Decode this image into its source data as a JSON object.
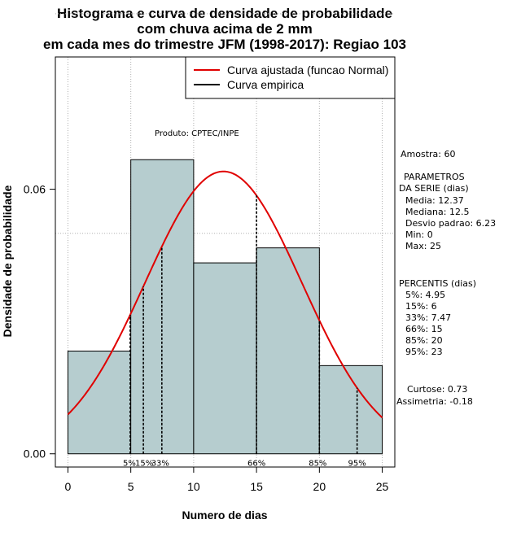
{
  "chart_data": {
    "type": "histogram",
    "title_lines": [
      "Histograma e curva de densidade de probabilidade",
      "com chuva acima de 2 mm",
      "em cada mes do trimestre JFM (1998-2017): Regiao 103"
    ],
    "xlabel": "Numero de dias",
    "ylabel": "Densidade de probabilidade",
    "xlim": [
      -1,
      26
    ],
    "ylim": [
      -0.003,
      0.09
    ],
    "x_ticks": [
      0,
      5,
      10,
      15,
      20,
      25
    ],
    "y_ticks": [
      0.0,
      0.06
    ],
    "y_tick_labels": [
      "0.00",
      "0.06"
    ],
    "grid_x": [
      0,
      5,
      10,
      15,
      20,
      25
    ],
    "grid_y": [
      0.05,
      0.0998
    ],
    "bins": [
      {
        "start": 0,
        "end": 5,
        "density": 0.0233
      },
      {
        "start": 5,
        "end": 10,
        "density": 0.0667
      },
      {
        "start": 10,
        "end": 15,
        "density": 0.0433
      },
      {
        "start": 15,
        "end": 20,
        "density": 0.0467
      },
      {
        "start": 20,
        "end": 25,
        "density": 0.02
      }
    ],
    "bar_color": "#b6cdcf",
    "curve_color": "#e00000",
    "normal_fit": {
      "mean": 12.37,
      "sd": 6.23
    },
    "percentiles": [
      {
        "label": "5%",
        "x": 4.95
      },
      {
        "label": "15%",
        "x": 6
      },
      {
        "label": "33%",
        "x": 7.47
      },
      {
        "label": "66%",
        "x": 15
      },
      {
        "label": "85%",
        "x": 20
      },
      {
        "label": "95%",
        "x": 23
      }
    ],
    "legend": {
      "position": "top-right",
      "entries": [
        {
          "label": "Curva ajustada (funcao Normal)",
          "color": "#e00000"
        },
        {
          "label": "Curva empirica",
          "color": "#000000"
        }
      ]
    },
    "product_note": "Produto: CPTEC/INPE",
    "stats": {
      "amostra": "Amostra: 60",
      "param_title": "PARAMETROS",
      "param_sub": "DA SERIE (dias)",
      "media": "Media: 12.37",
      "mediana": "Mediana: 12.5",
      "desvio": "Desvio padrao: 6.23",
      "min": "Min: 0",
      "max": "Max: 25",
      "perc_title": "PERCENTIS (dias)",
      "p5": "5%: 4.95",
      "p15": "15%: 6",
      "p33": "33%: 7.47",
      "p66": "66%: 15",
      "p85": "85%: 20",
      "p95": "95%: 23",
      "curtose": "Curtose: 0.73",
      "assimetria": "Assimetria: -0.18"
    }
  }
}
